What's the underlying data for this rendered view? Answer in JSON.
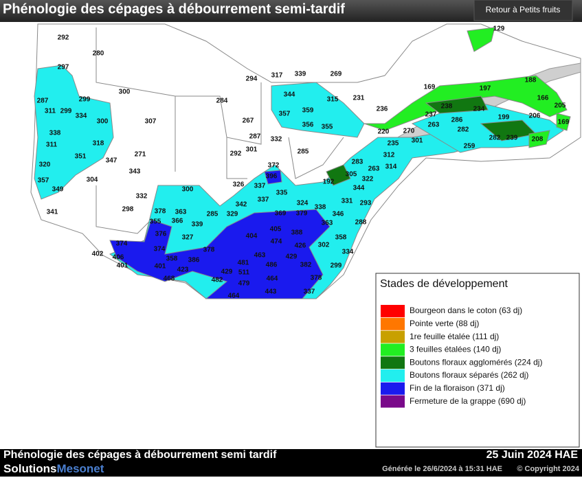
{
  "header": {
    "title": "Phénologie des cépages à débourrement semi-tardif",
    "button": "Retour à Petits fruits"
  },
  "map": {
    "stations": [
      292,
      280,
      297,
      300,
      287,
      299,
      311,
      299,
      334,
      300,
      307,
      338,
      311,
      318,
      351,
      347,
      271,
      343,
      320,
      357,
      304,
      349,
      332,
      298,
      341,
      300,
      284,
      267,
      294,
      317,
      339,
      269,
      344,
      315,
      231,
      357,
      359,
      356,
      355,
      287,
      332,
      301,
      292,
      285,
      372,
      396,
      326,
      337,
      335,
      337,
      342,
      324,
      338,
      329,
      369,
      379,
      378,
      363,
      355,
      366,
      339,
      285,
      376,
      327,
      374,
      374,
      378,
      406,
      402,
      401,
      401,
      358,
      386,
      423,
      468,
      405,
      388,
      404,
      474,
      426,
      463,
      429,
      481,
      486,
      382,
      429,
      511,
      482,
      479,
      464,
      378,
      443,
      337,
      464,
      302,
      358,
      334,
      299,
      346,
      363,
      288,
      331,
      293,
      344,
      322,
      192,
      305,
      283,
      263,
      314,
      312,
      235,
      220,
      270,
      301,
      236,
      169,
      197,
      188,
      166,
      205,
      238,
      234,
      237,
      263,
      286,
      282,
      199,
      206,
      169,
      259,
      282,
      239,
      208,
      129
    ]
  },
  "legend": {
    "title": "Stades de développement",
    "items": [
      {
        "label": "Bourgeon dans le coton (63 dj)",
        "color": "#ff0000"
      },
      {
        "label": "Pointe verte (88 dj)",
        "color": "#ff7700"
      },
      {
        "label": "1re feuille étalée (111 dj)",
        "color": "#c8a000"
      },
      {
        "label": "3 feuilles étalées (140 dj)",
        "color": "#22ee22"
      },
      {
        "label": "Boutons floraux agglomérés (224 dj)",
        "color": "#117711"
      },
      {
        "label": "Boutons floraux séparés (262 dj)",
        "color": "#22eeee"
      },
      {
        "label": "Fin de la floraison (371 dj)",
        "color": "#1a1aee"
      },
      {
        "label": "Fermeture de la grappe (690 dj)",
        "color": "#7a0a8a"
      }
    ]
  },
  "footer": {
    "title": "Phénologie des cépages à débourrement semi tardif",
    "date": "25 Juin 2024 HAE",
    "brand_a": "Solutions",
    "brand_b": "Mesonet",
    "generated": "Générée le 26/6/2024 à 15:31 HAE",
    "copyright": "© Copyright 2024"
  }
}
